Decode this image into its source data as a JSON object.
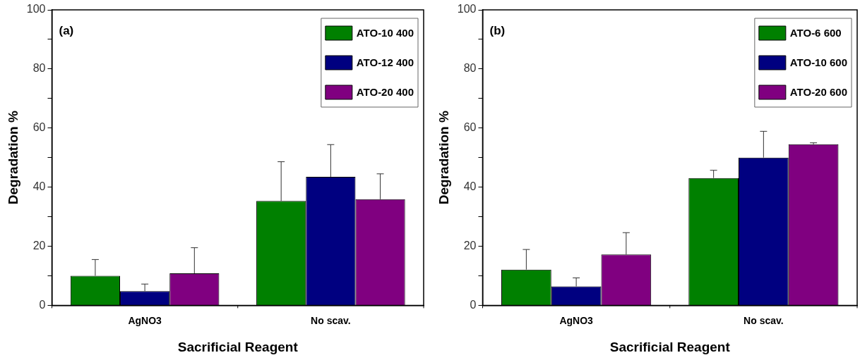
{
  "chart_data": [
    {
      "type": "bar",
      "xlabel": "Sacrificial Reagent",
      "ylabel": "Degradation %",
      "annotations": [
        "(a)"
      ],
      "categories": [
        "AgNO3",
        "No scav."
      ],
      "series": [
        {
          "name": "ATO-10 400",
          "color": "#008000",
          "values": [
            10.0,
            35.3
          ],
          "errors": [
            [
              10.0,
              15.5
            ],
            [
              35.3,
              48.6
            ]
          ]
        },
        {
          "name": "ATO-12 400",
          "color": "#000080",
          "values": [
            4.8,
            43.5
          ],
          "errors": [
            [
              4.8,
              7.2
            ],
            [
              43.5,
              54.4
            ]
          ]
        },
        {
          "name": "ATO-20 400",
          "color": "#800080",
          "values": [
            10.8,
            35.9
          ],
          "errors": [
            [
              10.8,
              19.5
            ],
            [
              35.9,
              44.5
            ]
          ]
        }
      ],
      "ylim": [
        0,
        100
      ],
      "yticks": [
        0,
        {
          "value": 10,
          "label": null
        },
        20,
        {
          "value": 30,
          "label": null
        },
        40,
        {
          "value": 50,
          "label": null
        },
        60,
        {
          "value": 70,
          "label": null
        },
        80,
        {
          "value": 90,
          "label": null
        },
        100
      ],
      "grid": false,
      "legend": "top right"
    },
    {
      "type": "bar",
      "xlabel": "Sacrificial Reagent",
      "ylabel": "Degradation %",
      "annotations": [
        "(b)"
      ],
      "categories": [
        "AgNO3",
        "No scav."
      ],
      "series": [
        {
          "name": "ATO-6 600",
          "color": "#008000",
          "values": [
            12.1,
            43.1
          ],
          "errors": [
            [
              12.1,
              18.9
            ],
            [
              43.1,
              45.7
            ]
          ]
        },
        {
          "name": "ATO-10 600",
          "color": "#000080",
          "values": [
            6.4,
            50.0
          ],
          "errors": [
            [
              6.4,
              9.3
            ],
            [
              50.0,
              58.9
            ]
          ]
        },
        {
          "name": "ATO-20 600",
          "color": "#800080",
          "values": [
            17.2,
            54.5
          ],
          "errors": [
            [
              17.2,
              24.6
            ],
            [
              54.5,
              55.0
            ]
          ]
        }
      ],
      "ylim": [
        0,
        100
      ],
      "yticks": [
        0,
        {
          "value": 10,
          "label": null
        },
        20,
        {
          "value": 30,
          "label": null
        },
        40,
        {
          "value": 50,
          "label": null
        },
        60,
        {
          "value": 70,
          "label": null
        },
        80,
        {
          "value": 90,
          "label": null
        },
        100
      ],
      "grid": false,
      "legend": "top right"
    }
  ]
}
